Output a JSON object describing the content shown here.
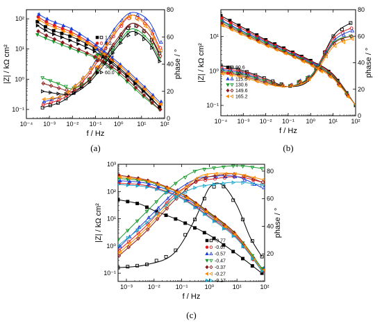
{
  "chart_data": [
    {
      "panel": "(a)",
      "type": "scatter",
      "xlabel": "f / Hz",
      "ylabel_left": "|Z| / kΩ cm²",
      "ylabel_right": "phase / °",
      "x_scale": "log",
      "xlim": [
        0.0001,
        100
      ],
      "y_left_scale": "log",
      "ylim_left": [
        0.05,
        200
      ],
      "ylim_right": [
        0,
        80
      ],
      "x_ticks": [
        "10⁻⁴",
        "10⁻³",
        "10⁻²",
        "10⁻¹",
        "10⁰",
        "10¹",
        "10²"
      ],
      "y_left_ticks": [
        "10⁻¹",
        "10⁰",
        "10¹",
        "10²"
      ],
      "y_right_ticks": [
        "0",
        "20",
        "40",
        "60",
        "80"
      ],
      "legend_position": "bottom-center",
      "series": [
        {
          "name": "1.5",
          "color": "#000000",
          "marker": "square",
          "mag": {
            "f": [
              0.0003,
              0.001,
              0.01,
              0.1,
              1,
              10,
              60
            ],
            "z": [
              80,
              45,
              25,
              10,
              2.5,
              0.5,
              0.12
            ]
          },
          "phase": {
            "f": [
              0.0005,
              0.003,
              0.01,
              0.05,
              0.2,
              1,
              4,
              20,
              60
            ],
            "p": [
              8,
              12,
              18,
              28,
              42,
              58,
              70,
              62,
              48
            ]
          }
        },
        {
          "name": "4.2",
          "color": "#e31a1c",
          "marker": "circle",
          "mag": {
            "f": [
              0.0003,
              0.001,
              0.01,
              0.1,
              1,
              10,
              60
            ],
            "z": [
              120,
              70,
              35,
              12,
              3,
              0.6,
              0.15
            ]
          },
          "phase": {
            "f": [
              0.0005,
              0.003,
              0.01,
              0.05,
              0.2,
              1,
              4,
              20,
              60
            ],
            "p": [
              10,
              14,
              20,
              32,
              48,
              66,
              76,
              68,
              52
            ]
          }
        },
        {
          "name": "7.0",
          "color": "#1f3fd8",
          "marker": "triangle-up",
          "mag": {
            "f": [
              0.0003,
              0.001,
              0.01,
              0.1,
              1,
              10,
              60
            ],
            "z": [
              150,
              90,
              45,
              14,
              3.5,
              0.7,
              0.18
            ]
          },
          "phase": {
            "f": [
              0.0005,
              0.003,
              0.01,
              0.05,
              0.2,
              1,
              4,
              20,
              60
            ],
            "p": [
              12,
              16,
              22,
              34,
              52,
              70,
              78,
              72,
              56
            ]
          }
        },
        {
          "name": "21.1",
          "color": "#1a9a2e",
          "marker": "triangle-down",
          "mag": {
            "f": [
              0.0003,
              0.001,
              0.01,
              0.1,
              1,
              10,
              60
            ],
            "z": [
              30,
              20,
              10,
              5,
              1.5,
              0.3,
              0.1
            ]
          },
          "phase": {
            "f": [
              0.0005,
              0.003,
              0.01,
              0.05,
              0.2,
              1,
              4,
              20,
              60
            ],
            "p": [
              30,
              25,
              22,
              28,
              40,
              56,
              66,
              58,
              44
            ]
          }
        },
        {
          "name": "26.5",
          "color": "#8b1a1a",
          "marker": "diamond",
          "mag": {
            "f": [
              0.0003,
              0.001,
              0.01,
              0.1,
              1,
              10,
              60
            ],
            "z": [
              40,
              25,
              12,
              5.5,
              1.8,
              0.35,
              0.1
            ]
          },
          "phase": {
            "f": [
              0.0005,
              0.003,
              0.01,
              0.05,
              0.2,
              1,
              4,
              20,
              60
            ],
            "p": [
              26,
              22,
              20,
              28,
              42,
              60,
              70,
              62,
              46
            ]
          }
        },
        {
          "name": "38.2",
          "color": "#ff8c00",
          "marker": "triangle-left",
          "mag": {
            "f": [
              0.0003,
              0.001,
              0.01,
              0.1,
              1,
              10,
              60
            ],
            "z": [
              100,
              60,
              30,
              11,
              3,
              0.6,
              0.15
            ]
          },
          "phase": {
            "f": [
              0.0005,
              0.003,
              0.01,
              0.05,
              0.2,
              1,
              4,
              20,
              60
            ],
            "p": [
              14,
              16,
              22,
              34,
              50,
              68,
              76,
              66,
              50
            ]
          }
        },
        {
          "name": "60.0",
          "color": "#000000",
          "marker": "triangle-right",
          "mag": {
            "f": [
              0.0003,
              0.001,
              0.01,
              0.1,
              1,
              10,
              60
            ],
            "z": [
              60,
              35,
              18,
              8,
              2.2,
              0.45,
              0.12
            ]
          },
          "phase": {
            "f": [
              0.0005,
              0.003,
              0.01,
              0.05,
              0.2,
              1,
              4,
              20,
              60
            ],
            "p": [
              20,
              18,
              18,
              26,
              38,
              54,
              64,
              56,
              42
            ]
          }
        }
      ]
    },
    {
      "panel": "(b)",
      "type": "scatter",
      "xlabel": "f / Hz",
      "ylabel_left": "|Z| / kΩ cm²",
      "ylabel_right": "phase / °",
      "x_scale": "log",
      "xlim": [
        0.0001,
        100
      ],
      "y_left_scale": "log",
      "ylim_left": [
        0.05,
        60
      ],
      "ylim_right": [
        0,
        80
      ],
      "x_ticks": [
        "10⁻⁴",
        "10⁻³",
        "10⁻²",
        "10⁻¹",
        "10⁰",
        "10¹",
        "10²"
      ],
      "y_left_ticks": [
        "10⁻¹",
        "10⁰",
        "10¹"
      ],
      "y_right_ticks": [
        "0",
        "20",
        "40",
        "60",
        "80"
      ],
      "legend_position": "bottom-left",
      "series": [
        {
          "name": "80.6",
          "color": "#000000",
          "marker": "square",
          "mag": {
            "f": [
              0.0001,
              0.001,
              0.01,
              0.1,
              1,
              10,
              100
            ],
            "z": [
              40,
              18,
              8,
              4,
              2,
              0.8,
              0.1
            ]
          },
          "phase": {
            "f": [
              0.0001,
              0.001,
              0.01,
              0.1,
              1,
              10,
              60
            ],
            "p": [
              38,
              34,
              28,
              22,
              28,
              60,
              70
            ]
          }
        },
        {
          "name": "103.9",
          "color": "#e31a1c",
          "marker": "circle",
          "mag": {
            "f": [
              0.0001,
              0.001,
              0.01,
              0.1,
              1,
              10,
              100
            ],
            "z": [
              35,
              16,
              7.5,
              3.8,
              1.9,
              0.75,
              0.1
            ]
          },
          "phase": {
            "f": [
              0.0001,
              0.001,
              0.01,
              0.1,
              1,
              10,
              60
            ],
            "p": [
              36,
              33,
              27,
              22,
              30,
              58,
              66
            ]
          }
        },
        {
          "name": "115.6",
          "color": "#1f3fd8",
          "marker": "triangle-up",
          "mag": {
            "f": [
              0.0001,
              0.001,
              0.01,
              0.1,
              1,
              10,
              100
            ],
            "z": [
              30,
              14,
              7,
              3.5,
              1.8,
              0.7,
              0.1
            ]
          },
          "phase": {
            "f": [
              0.0001,
              0.001,
              0.01,
              0.1,
              1,
              10,
              60
            ],
            "p": [
              35,
              32,
              26,
              22,
              30,
              56,
              64
            ]
          }
        },
        {
          "name": "130.6",
          "color": "#1a9a2e",
          "marker": "triangle-down",
          "mag": {
            "f": [
              0.0001,
              0.001,
              0.01,
              0.1,
              1,
              10,
              100
            ],
            "z": [
              28,
              13,
              6.5,
              3.3,
              1.7,
              0.7,
              0.1
            ]
          },
          "phase": {
            "f": [
              0.0001,
              0.001,
              0.01,
              0.1,
              1,
              10,
              60
            ],
            "p": [
              34,
              31,
              26,
              22,
              30,
              55,
              60
            ]
          }
        },
        {
          "name": "149.6",
          "color": "#8b1a1a",
          "marker": "diamond",
          "mag": {
            "f": [
              0.0001,
              0.001,
              0.01,
              0.1,
              1,
              10,
              100
            ],
            "z": [
              25,
              12,
              6,
              3.1,
              1.6,
              0.65,
              0.1
            ]
          },
          "phase": {
            "f": [
              0.0001,
              0.001,
              0.01,
              0.1,
              1,
              10,
              60
            ],
            "p": [
              33,
              30,
              25,
              22,
              29,
              54,
              60
            ]
          }
        },
        {
          "name": "165.2",
          "color": "#ff8c00",
          "marker": "triangle-left",
          "mag": {
            "f": [
              0.0001,
              0.001,
              0.01,
              0.1,
              1,
              10,
              100
            ],
            "z": [
              22,
              11,
              5.5,
              3,
              1.5,
              0.6,
              0.1
            ]
          },
          "phase": {
            "f": [
              0.0001,
              0.001,
              0.01,
              0.1,
              1,
              10,
              60
            ],
            "p": [
              32,
              29,
              24,
              22,
              28,
              52,
              58
            ]
          }
        }
      ]
    },
    {
      "panel": "(c)",
      "type": "scatter",
      "xlabel": "f / Hz",
      "ylabel_left": "|Z| / kΩ cm²",
      "ylabel_right": "phase / °",
      "x_scale": "log",
      "xlim": [
        0.0005,
        100
      ],
      "y_left_scale": "log",
      "ylim_left": [
        0.05,
        1000
      ],
      "ylim_right": [
        0,
        85
      ],
      "x_ticks": [
        "10⁻³",
        "10⁻²",
        "10⁻¹",
        "10⁰",
        "10¹",
        "10²"
      ],
      "y_left_ticks": [
        "10⁻¹",
        "10⁰",
        "10¹",
        "10²",
        "10³"
      ],
      "y_right_ticks": [
        "20",
        "40",
        "60",
        "80"
      ],
      "legend_position": "bottom-right",
      "series": [
        {
          "name": "-0.77",
          "color": "#000000",
          "marker": "square",
          "mag": {
            "f": [
              0.0005,
              0.003,
              0.01,
              0.1,
              1,
              10,
              80
            ],
            "z": [
              50,
              35,
              20,
              8,
              2.5,
              0.5,
              0.1
            ]
          },
          "phase": {
            "f": [
              0.0005,
              0.005,
              0.05,
              0.3,
              1,
              3,
              10,
              30,
              80
            ],
            "p": [
              10,
              12,
              20,
              45,
              68,
              70,
              55,
              32,
              18
            ]
          }
        },
        {
          "name": "-0.67",
          "color": "#e31a1c",
          "marker": "circle",
          "mag": {
            "f": [
              0.0005,
              0.003,
              0.01,
              0.1,
              1,
              10,
              80
            ],
            "z": [
              200,
              180,
              140,
              60,
              12,
              2,
              0.12
            ]
          },
          "phase": {
            "f": [
              0.0005,
              0.005,
              0.05,
              0.3,
              1,
              10,
              80
            ],
            "p": [
              22,
              40,
              62,
              72,
              74,
              76,
              72
            ]
          }
        },
        {
          "name": "-0.57",
          "color": "#1f3fd8",
          "marker": "triangle-up",
          "mag": {
            "f": [
              0.0005,
              0.003,
              0.01,
              0.1,
              1,
              10,
              80
            ],
            "z": [
              250,
              220,
              170,
              70,
              14,
              2.2,
              0.15
            ]
          },
          "phase": {
            "f": [
              0.0005,
              0.005,
              0.05,
              0.3,
              1,
              10,
              80
            ],
            "p": [
              24,
              44,
              64,
              74,
              76,
              76,
              68
            ]
          }
        },
        {
          "name": "-0.47",
          "color": "#1a9a2e",
          "marker": "triangle-down",
          "mag": {
            "f": [
              0.0005,
              0.003,
              0.01,
              0.1,
              1,
              10,
              80
            ],
            "z": [
              300,
              260,
              200,
              80,
              16,
              2.5,
              0.15
            ]
          },
          "phase": {
            "f": [
              0.0005,
              0.005,
              0.05,
              0.3,
              1,
              10,
              80
            ],
            "p": [
              30,
              50,
              70,
              80,
              82,
              84,
              82
            ]
          }
        },
        {
          "name": "-0.37",
          "color": "#8b1a1a",
          "marker": "diamond",
          "mag": {
            "f": [
              0.0005,
              0.003,
              0.01,
              0.1,
              1,
              10,
              80
            ],
            "z": [
              400,
              300,
              220,
              85,
              17,
              2.5,
              0.12
            ]
          },
          "phase": {
            "f": [
              0.0005,
              0.005,
              0.05,
              0.3,
              1,
              10,
              80
            ],
            "p": [
              18,
              36,
              58,
              72,
              76,
              78,
              72
            ]
          }
        },
        {
          "name": "-0.27",
          "color": "#ff8c00",
          "marker": "triangle-left",
          "mag": {
            "f": [
              0.0005,
              0.003,
              0.01,
              0.1,
              1,
              10,
              80
            ],
            "z": [
              350,
              280,
              210,
              80,
              15,
              2.3,
              0.13
            ]
          },
          "phase": {
            "f": [
              0.0005,
              0.005,
              0.05,
              0.3,
              1,
              10,
              80
            ],
            "p": [
              20,
              38,
              60,
              74,
              78,
              78,
              74
            ]
          }
        },
        {
          "name": "-0.17",
          "color": "#20a5c8",
          "marker": "triangle-right",
          "mag": {
            "f": [
              0.0005,
              0.003,
              0.01,
              0.1,
              1,
              10,
              80
            ],
            "z": [
              180,
              160,
              130,
              55,
              11,
              1.8,
              0.12
            ]
          },
          "phase": {
            "f": [
              0.0005,
              0.005,
              0.05,
              0.3,
              1,
              10,
              80
            ],
            "p": [
              26,
              42,
              60,
              68,
              70,
              72,
              70
            ]
          }
        }
      ]
    }
  ]
}
